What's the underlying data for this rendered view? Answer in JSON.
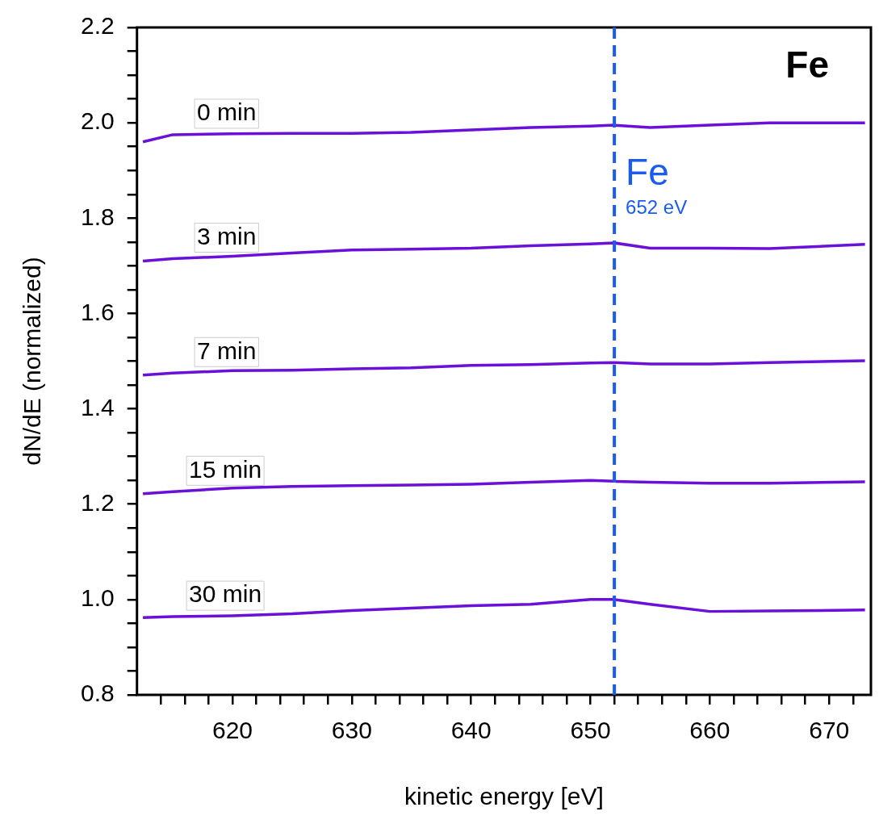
{
  "chart_data": {
    "type": "line",
    "title": "Fe",
    "xlabel": "kinetic energy [eV]",
    "ylabel": "dN/dE (normalized)",
    "xlim": [
      612,
      673.5
    ],
    "ylim": [
      0.8,
      2.2
    ],
    "xticks": [
      {
        "value": 614,
        "label": null
      },
      {
        "value": 616,
        "label": null
      },
      {
        "value": 618,
        "label": null
      },
      620,
      {
        "value": 622,
        "label": null
      },
      {
        "value": 624,
        "label": null
      },
      {
        "value": 626,
        "label": null
      },
      {
        "value": 628,
        "label": null
      },
      630,
      {
        "value": 632,
        "label": null
      },
      {
        "value": 634,
        "label": null
      },
      {
        "value": 636,
        "label": null
      },
      {
        "value": 638,
        "label": null
      },
      640,
      {
        "value": 642,
        "label": null
      },
      {
        "value": 644,
        "label": null
      },
      {
        "value": 646,
        "label": null
      },
      {
        "value": 648,
        "label": null
      },
      650,
      {
        "value": 652,
        "label": null
      },
      {
        "value": 654,
        "label": null
      },
      {
        "value": 656,
        "label": null
      },
      {
        "value": 658,
        "label": null
      },
      660,
      {
        "value": 662,
        "label": null
      },
      {
        "value": 664,
        "label": null
      },
      {
        "value": 666,
        "label": null
      },
      {
        "value": 668,
        "label": null
      },
      670,
      {
        "value": 672,
        "label": null
      }
    ],
    "yticks": [
      {
        "value": 0.8,
        "label": "0.8"
      },
      {
        "value": 0.85,
        "label": null
      },
      {
        "value": 0.9,
        "label": null
      },
      {
        "value": 0.95,
        "label": null
      },
      {
        "value": 1.0,
        "label": "1.0"
      },
      {
        "value": 1.05,
        "label": null
      },
      {
        "value": 1.1,
        "label": null
      },
      {
        "value": 1.15,
        "label": null
      },
      {
        "value": 1.2,
        "label": "1.2"
      },
      {
        "value": 1.25,
        "label": null
      },
      {
        "value": 1.3,
        "label": null
      },
      {
        "value": 1.35,
        "label": null
      },
      {
        "value": 1.4,
        "label": "1.4"
      },
      {
        "value": 1.45,
        "label": null
      },
      {
        "value": 1.5,
        "label": null
      },
      {
        "value": 1.55,
        "label": null
      },
      {
        "value": 1.6,
        "label": "1.6"
      },
      {
        "value": 1.65,
        "label": null
      },
      {
        "value": 1.7,
        "label": null
      },
      {
        "value": 1.75,
        "label": null
      },
      {
        "value": 1.8,
        "label": "1.8"
      },
      {
        "value": 1.85,
        "label": null
      },
      {
        "value": 1.9,
        "label": null
      },
      {
        "value": 1.95,
        "label": null
      },
      {
        "value": 2.0,
        "label": "2.0"
      },
      {
        "value": 2.05,
        "label": null
      },
      {
        "value": 2.1,
        "label": null
      },
      {
        "value": 2.15,
        "label": null
      },
      {
        "value": 2.2,
        "label": "2.2"
      }
    ],
    "x": [
      612.5,
      615,
      620,
      625,
      630,
      635,
      640,
      645,
      650,
      652,
      655,
      660,
      665,
      673
    ],
    "series": [
      {
        "name": "0 min",
        "color": "#6a10d8",
        "values": [
          1.96,
          1.975,
          1.977,
          1.978,
          1.978,
          1.98,
          1.985,
          1.99,
          1.993,
          1.995,
          1.99,
          1.995,
          2.0,
          2.0
        ]
      },
      {
        "name": "3 min",
        "color": "#6a10d8",
        "values": [
          1.71,
          1.715,
          1.72,
          1.727,
          1.733,
          1.735,
          1.737,
          1.742,
          1.746,
          1.748,
          1.737,
          1.737,
          1.736,
          1.745
        ]
      },
      {
        "name": "7 min",
        "color": "#6a10d8",
        "values": [
          1.471,
          1.475,
          1.48,
          1.481,
          1.484,
          1.486,
          1.491,
          1.493,
          1.496,
          1.497,
          1.494,
          1.494,
          1.497,
          1.501
        ]
      },
      {
        "name": "15 min",
        "color": "#6a10d8",
        "values": [
          1.222,
          1.226,
          1.234,
          1.237,
          1.239,
          1.24,
          1.242,
          1.246,
          1.25,
          1.248,
          1.246,
          1.244,
          1.244,
          1.247
        ]
      },
      {
        "name": "30 min",
        "color": "#6a10d8",
        "values": [
          0.962,
          0.964,
          0.966,
          0.97,
          0.977,
          0.982,
          0.987,
          0.99,
          1.0,
          1.0,
          0.99,
          0.975,
          0.976,
          0.978
        ]
      }
    ],
    "ref_lines": [
      {
        "axis": "x",
        "value": 652,
        "label": "Fe",
        "color": "#1a5cf0",
        "line_style": "dashed"
      }
    ],
    "annotations": [
      {
        "text": "652 eV",
        "x": 652,
        "y": 1.82
      }
    ],
    "grid": false,
    "legend": false,
    "marker": "none",
    "line_style": "solid"
  }
}
